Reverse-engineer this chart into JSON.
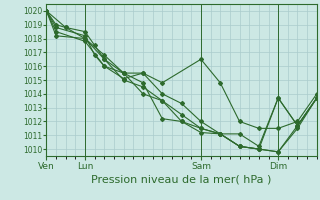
{
  "bg_color": "#cce8e4",
  "grid_color": "#aacccc",
  "line_color": "#2d6a2d",
  "marker_color": "#2d6a2d",
  "xlabel": "Pression niveau de la mer( hPa )",
  "xlabel_fontsize": 8,
  "ylim": [
    1009.5,
    1020.5
  ],
  "yticks": [
    1010,
    1011,
    1012,
    1013,
    1014,
    1015,
    1016,
    1017,
    1018,
    1019,
    1020
  ],
  "xtick_labels": [
    "Ven",
    "Lun",
    "Sam",
    "Dim"
  ],
  "xtick_positions": [
    0,
    24,
    96,
    144
  ],
  "vlines": [
    0,
    24,
    96,
    144
  ],
  "total_hours": 168,
  "series": [
    {
      "x": [
        0,
        6,
        12,
        24,
        30,
        36,
        48,
        60,
        72,
        84,
        96,
        108,
        120,
        132,
        144,
        156,
        168
      ],
      "y": [
        1020.0,
        1019.0,
        1018.8,
        1018.5,
        1017.5,
        1016.5,
        1015.0,
        1014.5,
        1013.5,
        1012.0,
        1011.2,
        1011.1,
        1010.2,
        1010.0,
        1013.7,
        1011.7,
        1013.7
      ]
    },
    {
      "x": [
        0,
        6,
        24,
        30,
        36,
        48,
        60,
        72,
        84,
        96,
        108,
        120,
        132,
        144,
        156,
        168
      ],
      "y": [
        1020.0,
        1018.8,
        1018.2,
        1016.8,
        1016.0,
        1015.1,
        1015.5,
        1014.0,
        1013.3,
        1012.0,
        1011.1,
        1011.1,
        1010.2,
        1013.7,
        1011.7,
        1013.7
      ]
    },
    {
      "x": [
        0,
        12,
        24,
        36,
        48,
        60,
        72,
        84,
        96,
        108,
        120,
        132,
        144,
        156,
        168
      ],
      "y": [
        1020.0,
        1018.8,
        1018.0,
        1016.5,
        1015.5,
        1014.0,
        1013.5,
        1012.5,
        1011.5,
        1011.1,
        1010.2,
        1010.0,
        1009.8,
        1011.5,
        1013.7
      ]
    },
    {
      "x": [
        0,
        6,
        24,
        36,
        48,
        60,
        72,
        84,
        96,
        108,
        120,
        132,
        144,
        156,
        168
      ],
      "y": [
        1020.0,
        1018.5,
        1017.8,
        1016.0,
        1015.5,
        1014.8,
        1012.2,
        1012.0,
        1011.5,
        1011.1,
        1010.2,
        1010.0,
        1009.8,
        1011.7,
        1013.7
      ]
    },
    {
      "x": [
        0,
        6,
        24,
        36,
        48,
        60,
        72,
        96,
        108,
        120,
        132,
        144,
        156,
        168
      ],
      "y": [
        1020.0,
        1018.2,
        1018.0,
        1016.8,
        1015.5,
        1015.5,
        1014.8,
        1016.5,
        1014.8,
        1012.0,
        1011.5,
        1011.5,
        1012.0,
        1014.0
      ]
    }
  ]
}
